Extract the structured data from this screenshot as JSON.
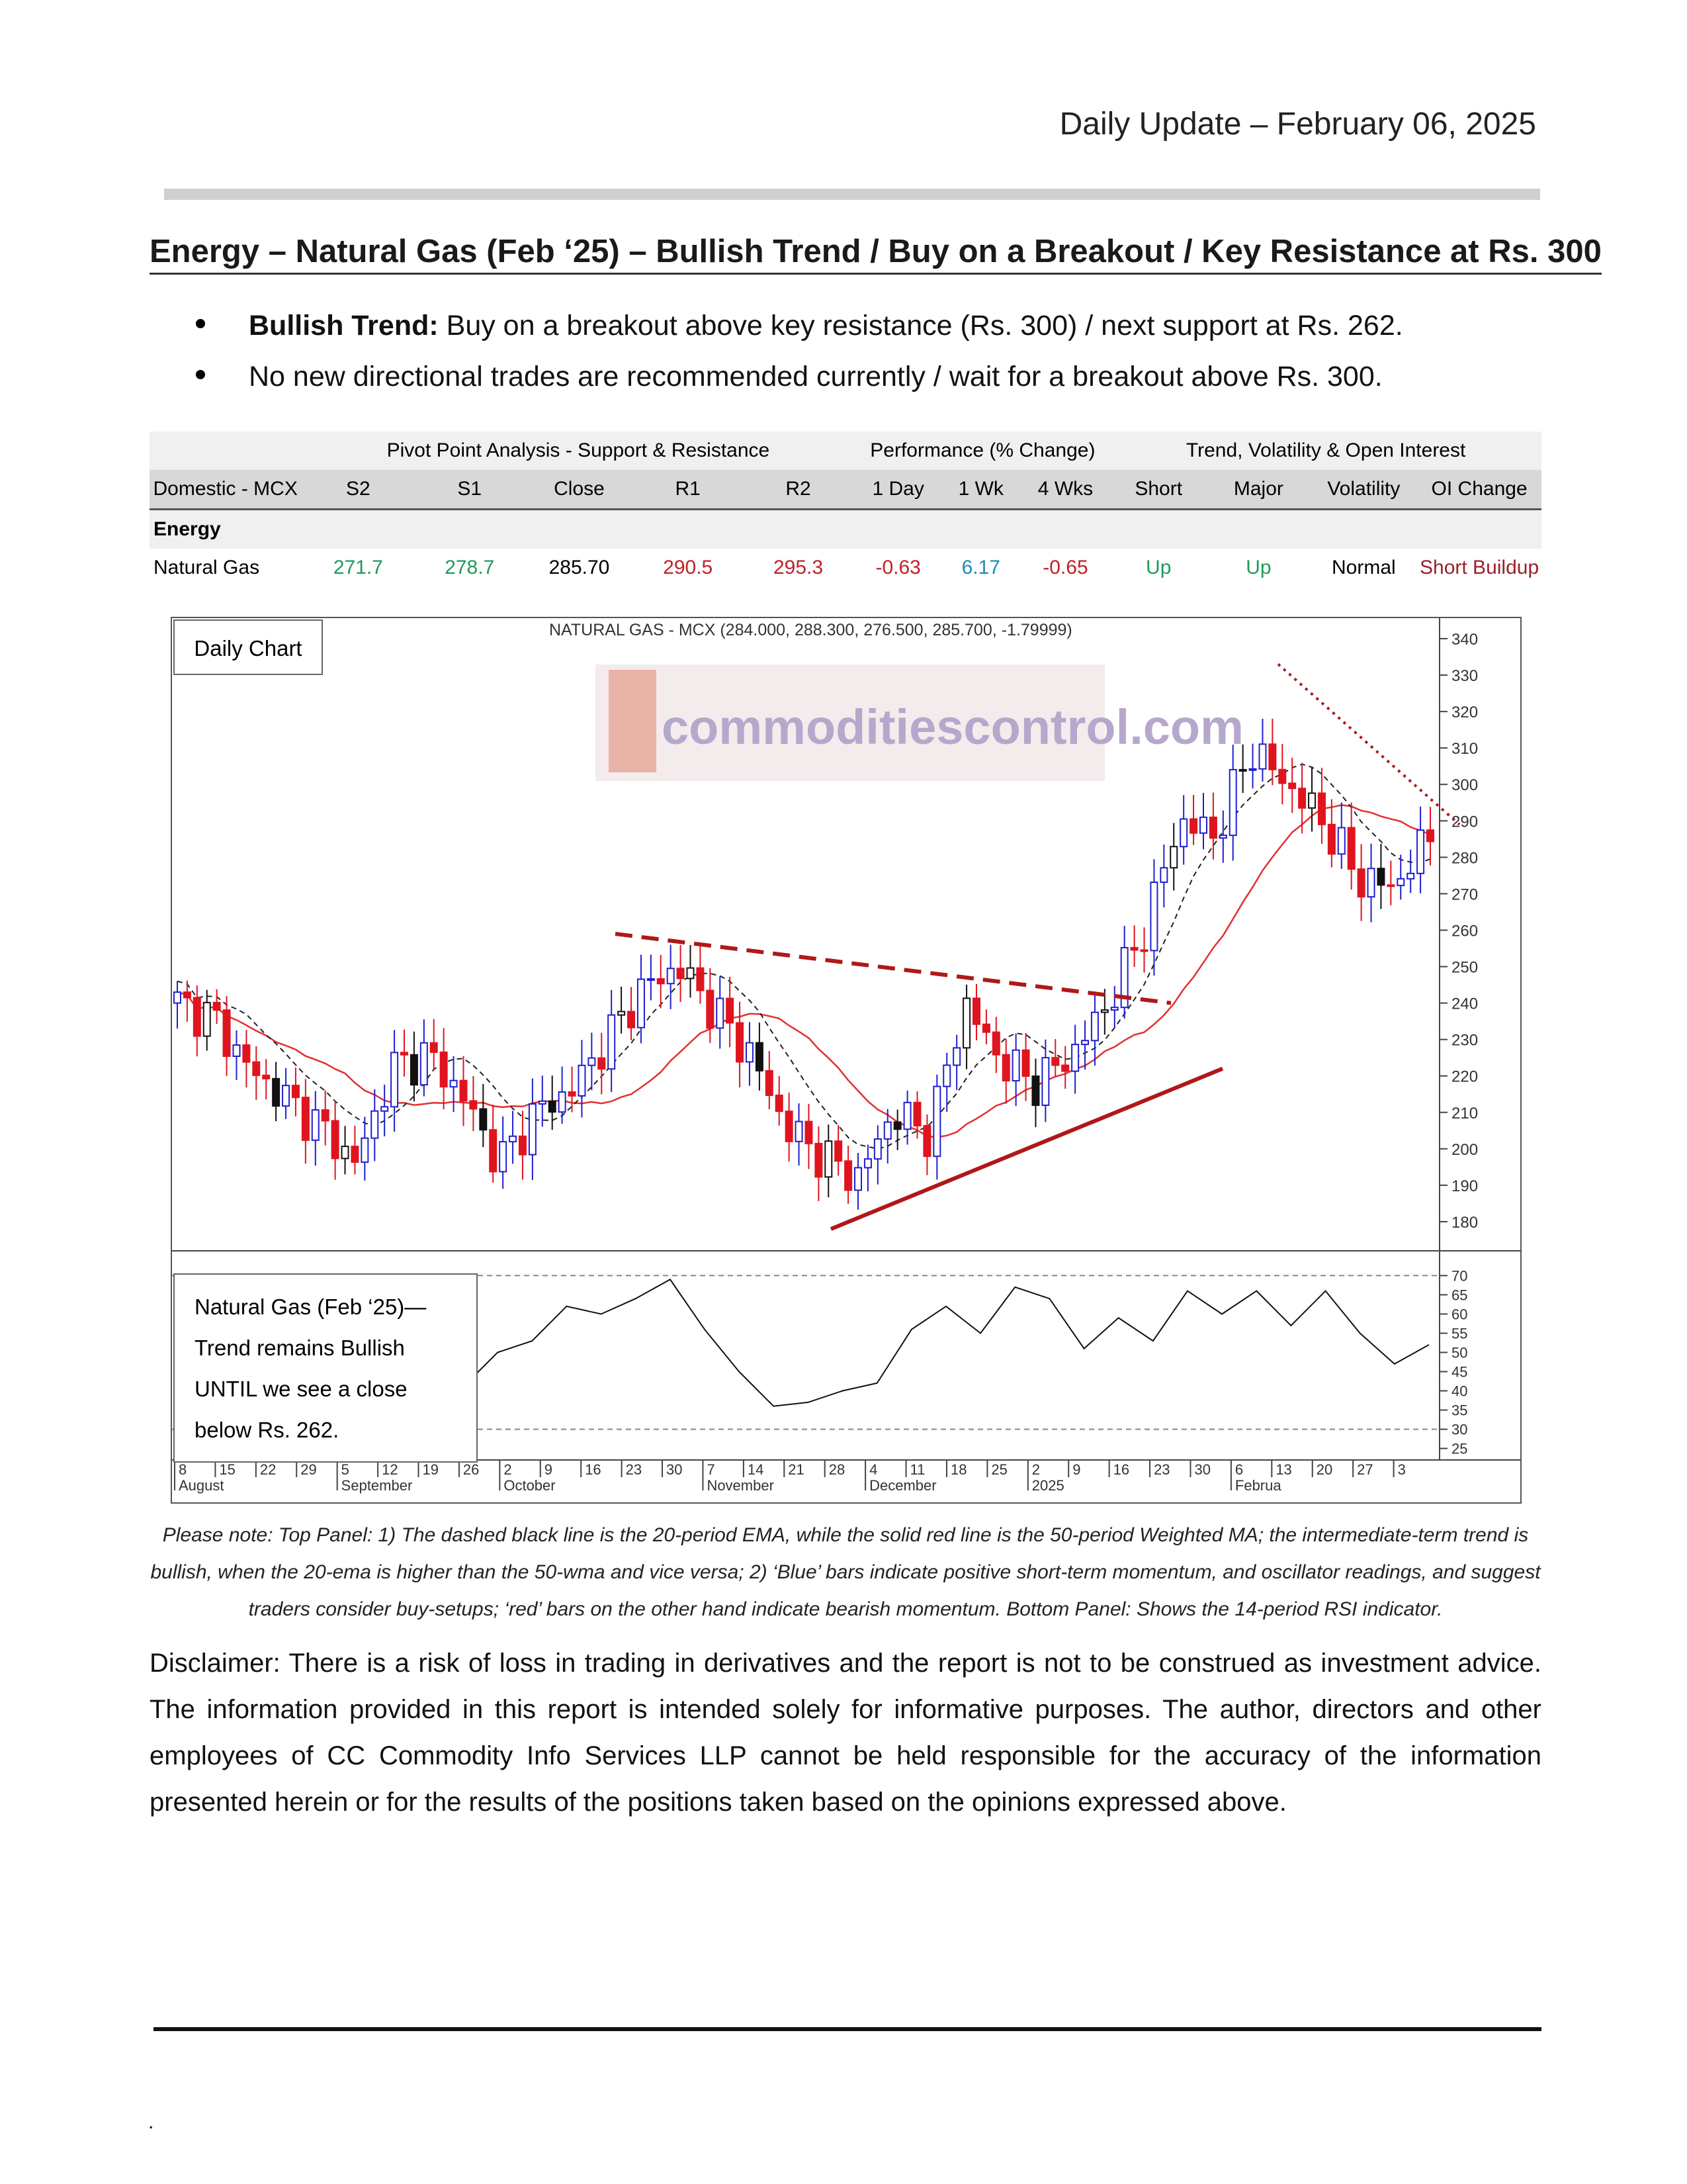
{
  "header": {
    "date": "Daily Update – February 06, 2025"
  },
  "report_title": "Energy – Natural Gas (Feb ‘25) – Bullish Trend / Buy on a Breakout / Key Resistance at Rs. 300",
  "bullets": [
    {
      "bold": "Bullish Trend:",
      "text": " Buy on a breakout above key resistance (Rs. 300) / next support at Rs. 262."
    },
    {
      "bold": "",
      "text": "No new directional trades are recommended currently / wait for a breakout above Rs. 300."
    }
  ],
  "table": {
    "groups": {
      "pivot": "Pivot Point Analysis - Support & Resistance",
      "performance": "Performance (% Change)",
      "trend": "Trend, Volatility & Open Interest"
    },
    "columns": [
      "Domestic - MCX",
      "S2",
      "S1",
      "Close",
      "R1",
      "R2",
      "1 Day",
      "1 Wk",
      "4 Wks",
      "Short",
      "Major",
      "Volatility",
      "OI Change"
    ],
    "section": "Energy",
    "row": {
      "name": "Natural Gas",
      "s2": "271.7",
      "s1": "278.7",
      "close": "285.70",
      "r1": "290.5",
      "r2": "295.3",
      "day1": "-0.63",
      "wk1": "6.17",
      "wk4": "-0.65",
      "short": "Up",
      "major": "Up",
      "volatility": "Normal",
      "oi_change": "Short Buildup"
    },
    "colors": {
      "green": "#1e9b5a",
      "red": "#c0202a",
      "blue": "#1a8fb5",
      "dark_red": "#9a1f2a"
    }
  },
  "chart": {
    "label": "Daily Chart",
    "title": "NATURAL GAS - MCX (284.000, 288.300, 276.500, 285.700, -1.79999)",
    "watermark": "commoditiescontrol.com",
    "rsi_note": "Natural Gas (Feb ‘25)— Trend remains Bullish UNTIL we see a close below Rs. 262.",
    "price_ticks": [
      "340",
      "330",
      "320",
      "310",
      "300",
      "290",
      "280",
      "270",
      "260",
      "250",
      "240",
      "230",
      "220",
      "210",
      "200",
      "190",
      "180"
    ],
    "rsi_ticks": [
      "70",
      "65",
      "60",
      "55",
      "50",
      "45",
      "40",
      "35",
      "30",
      "25"
    ],
    "date_ticks": [
      "8",
      "15",
      "22",
      "29",
      "5",
      "12",
      "19",
      "26",
      "2",
      "9",
      "16",
      "23",
      "30",
      "7",
      "14",
      "21",
      "28",
      "4",
      "11",
      "18",
      "25",
      "2",
      "9",
      "16",
      "23",
      "30",
      "6",
      "13",
      "20",
      "27",
      "3"
    ],
    "month_labels": [
      "August",
      "September",
      "October",
      "November",
      "December",
      "2025",
      "Februa"
    ],
    "colors": {
      "up_bar": "#1f1fd0",
      "down_bar": "#e0141e",
      "neutral_bar": "#111111",
      "wma": "#e23030",
      "ema": "#222222",
      "trendline": "#b01818"
    }
  },
  "chart_data": {
    "type": "candlestick",
    "title": "NATURAL GAS - MCX (284.000, 288.300, 276.500, 285.700, -1.79999)",
    "last_ohlc": {
      "open": 284.0,
      "high": 288.3,
      "low": 276.5,
      "close": 285.7,
      "change": -1.79999
    },
    "price_range": [
      172,
      342
    ],
    "rsi_range": [
      22,
      73
    ],
    "rsi_reference_lines": [
      30,
      70
    ],
    "weekly_x": [
      "Aug 8",
      "Aug 15",
      "Aug 22",
      "Aug 29",
      "Sep 5",
      "Sep 12",
      "Sep 19",
      "Sep 26",
      "Oct 2",
      "Oct 9",
      "Oct 16",
      "Oct 23",
      "Oct 30",
      "Nov 7",
      "Nov 14",
      "Nov 21",
      "Nov 28",
      "Dec 4",
      "Dec 11",
      "Dec 18",
      "Dec 25",
      "Jan 2",
      "Jan 9",
      "Jan 16",
      "Jan 23",
      "Jan 30",
      "Feb 6",
      "Feb 13",
      "Feb 20",
      "Feb 27",
      "Mar 3"
    ],
    "price_close_approx": [
      240,
      236,
      222,
      214,
      206,
      196,
      222,
      226,
      214,
      196,
      210,
      216,
      230,
      244,
      250,
      238,
      226,
      206,
      198,
      192,
      210,
      204,
      240,
      224,
      218,
      226,
      240,
      260,
      290,
      286,
      310,
      300,
      290,
      274,
      272,
      286
    ],
    "rsi_approx": [
      41,
      50,
      53,
      62,
      60,
      64,
      69,
      56,
      45,
      36,
      37,
      40,
      42,
      56,
      62,
      55,
      67,
      64,
      51,
      59,
      53,
      66,
      60,
      66,
      57,
      66,
      55,
      47,
      52
    ]
  },
  "caption": "Please note: Top Panel: 1) The dashed black line is the 20-period EMA, while the solid red line is the 50-period Weighted MA; the intermediate-term trend is bullish, when the 20-ema is higher than the 50-wma and vice versa; 2) ‘Blue’ bars indicate positive short-term momentum, and oscillator readings, and suggest traders consider buy-setups; ‘red’ bars on the other hand indicate bearish momentum. Bottom Panel: Shows the 14-period RSI indicator.",
  "disclaimer": "Disclaimer: There is a risk of loss in trading in derivatives and the report is not to be construed as investment advice. The information provided in this report is intended solely for informative purposes. The author, directors and other employees of CC Commodity Info Services LLP cannot be held responsible for the accuracy of the information presented herein or for the results of the positions taken based on the opinions expressed above.",
  "footer_mark": "."
}
